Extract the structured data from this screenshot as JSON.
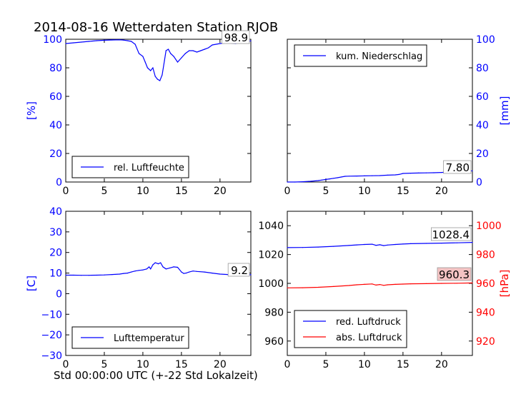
{
  "title": "2014-08-16 Wetterdaten Station RJOB",
  "xlabel": "Std 00:00:00 UTC (+-22 Std Lokalzeit)",
  "colors": {
    "primary": "#0000ff",
    "secondary": "#ff0000",
    "axis": "#000000"
  },
  "chart_data": [
    {
      "type": "line",
      "panel": "top-left",
      "ylabel": "[%]",
      "ylabel_side": "left",
      "xlim": [
        0,
        24
      ],
      "ylim": [
        0,
        100
      ],
      "xticks": [
        "0",
        "5",
        "10",
        "15",
        "20"
      ],
      "yticks": [
        "0",
        "20",
        "40",
        "60",
        "80",
        "100"
      ],
      "legend": [
        "rel. Luftfeuchte"
      ],
      "legend_position": "lower-center",
      "last_value_label": "98.9",
      "series": [
        {
          "name": "rel. Luftfeuchte",
          "color": "#0000ff",
          "x": [
            0,
            1,
            2,
            3,
            4,
            5,
            6,
            7,
            7.5,
            8,
            8.5,
            9,
            9.5,
            10,
            10.3,
            10.6,
            11,
            11.3,
            11.6,
            11.9,
            12.2,
            12.5,
            12.8,
            13,
            13.3,
            13.6,
            14,
            14.5,
            15,
            15.5,
            16,
            16.5,
            17,
            17.5,
            18,
            18.5,
            19,
            20,
            21,
            22,
            23,
            24
          ],
          "y": [
            97,
            97.5,
            98,
            98.5,
            99,
            99.3,
            99.5,
            99.6,
            99.4,
            99,
            98.5,
            96.5,
            90,
            88,
            84,
            80,
            78,
            80,
            74,
            72,
            71,
            75,
            85,
            92,
            93,
            90,
            88,
            84,
            87,
            90,
            92,
            92,
            91,
            92,
            93,
            94,
            96,
            97,
            97.5,
            97,
            98,
            98.9
          ]
        }
      ]
    },
    {
      "type": "line",
      "panel": "top-right",
      "ylabel": "[mm]",
      "ylabel_side": "right",
      "xlim": [
        0,
        24
      ],
      "ylim": [
        0,
        100
      ],
      "xticks": [
        "0",
        "5",
        "10",
        "15",
        "20"
      ],
      "yticks": [
        "0",
        "20",
        "40",
        "60",
        "80",
        "100"
      ],
      "legend": [
        "kum. Niederschlag"
      ],
      "legend_position": "upper-left",
      "last_value_label": "7.80",
      "series": [
        {
          "name": "kum. Niederschlag",
          "color": "#0000ff",
          "x": [
            0,
            1,
            2,
            3,
            4,
            4.5,
            5,
            5.5,
            6,
            6.5,
            7,
            7.5,
            8,
            9,
            10,
            11,
            12,
            13,
            14,
            14.5,
            15,
            16,
            17,
            18,
            19,
            20,
            21,
            22,
            23,
            24
          ],
          "y": [
            0,
            0,
            0.2,
            0.5,
            1,
            1.4,
            1.8,
            2.2,
            2.6,
            3,
            3.5,
            4,
            4.1,
            4.2,
            4.3,
            4.4,
            4.5,
            4.8,
            5.0,
            5.3,
            6.0,
            6.2,
            6.3,
            6.4,
            6.5,
            6.7,
            7.0,
            7.3,
            7.6,
            7.8
          ]
        }
      ]
    },
    {
      "type": "line",
      "panel": "bottom-left",
      "ylabel": "[C]",
      "ylabel_side": "left",
      "xlim": [
        0,
        24
      ],
      "ylim": [
        -30,
        40
      ],
      "xticks": [
        "0",
        "5",
        "10",
        "15",
        "20"
      ],
      "yticks": [
        "−30",
        "−20",
        "−10",
        "0",
        "10",
        "20",
        "30",
        "40"
      ],
      "legend": [
        "Lufttemperatur"
      ],
      "legend_position": "lower-center",
      "last_value_label": "9.2",
      "series": [
        {
          "name": "Lufttemperatur",
          "color": "#0000ff",
          "x": [
            0,
            1,
            2,
            3,
            4,
            5,
            6,
            7,
            7.5,
            8,
            8.5,
            9,
            9.5,
            10,
            10.5,
            10.8,
            11,
            11.3,
            11.6,
            12,
            12.3,
            12.6,
            13,
            13.5,
            14,
            14.5,
            15,
            15.3,
            15.6,
            16,
            16.5,
            17,
            18,
            19,
            20,
            21,
            22,
            23,
            24
          ],
          "y": [
            9,
            9,
            8.9,
            8.9,
            9,
            9.1,
            9.3,
            9.5,
            9.8,
            10,
            10.5,
            11,
            11.3,
            11.5,
            12,
            13,
            12,
            14,
            15,
            14.5,
            15,
            13,
            12,
            12.5,
            13,
            12.8,
            10.5,
            9.8,
            10,
            10.5,
            11,
            10.8,
            10.5,
            10,
            9.5,
            9.3,
            9.2,
            9.2,
            9.2
          ]
        }
      ]
    },
    {
      "type": "line",
      "panel": "bottom-right",
      "ylabel": "[hPa]",
      "ylabel_side": "right",
      "xlim": [
        0,
        24
      ],
      "ylim_left": [
        950,
        1050
      ],
      "ylim_right": [
        910,
        1010
      ],
      "xticks": [
        "0",
        "5",
        "10",
        "15",
        "20"
      ],
      "yticks_left": [
        "960",
        "980",
        "1000",
        "1020",
        "1040"
      ],
      "yticks_right": [
        "920",
        "940",
        "960",
        "980",
        "1000"
      ],
      "legend": [
        "red. Luftdruck",
        "abs. Luftdruck"
      ],
      "legend_position": "lower-left",
      "last_value_labels": [
        "1028.4",
        "960.3"
      ],
      "series": [
        {
          "name": "red. Luftdruck",
          "color": "#0000ff",
          "axis": "left",
          "x": [
            0,
            2,
            4,
            6,
            8,
            9,
            10,
            11,
            11.5,
            12,
            12.5,
            13,
            14,
            15,
            16,
            18,
            20,
            22,
            24
          ],
          "y": [
            1024.8,
            1024.9,
            1025.2,
            1025.7,
            1026.3,
            1026.7,
            1027,
            1027.2,
            1026.4,
            1026.8,
            1026.2,
            1026.6,
            1027,
            1027.3,
            1027.5,
            1027.7,
            1027.9,
            1028.1,
            1028.4
          ]
        },
        {
          "name": "abs. Luftdruck",
          "color": "#ff0000",
          "axis": "right",
          "x": [
            0,
            2,
            4,
            6,
            8,
            9,
            10,
            11,
            11.5,
            12,
            12.5,
            13,
            14,
            15,
            16,
            18,
            20,
            22,
            24
          ],
          "y": [
            956.9,
            957,
            957.3,
            957.8,
            958.5,
            959,
            959.3,
            959.6,
            958.8,
            959.2,
            958.6,
            959,
            959.3,
            959.5,
            959.7,
            959.8,
            960,
            960.1,
            960.3
          ]
        }
      ]
    }
  ]
}
